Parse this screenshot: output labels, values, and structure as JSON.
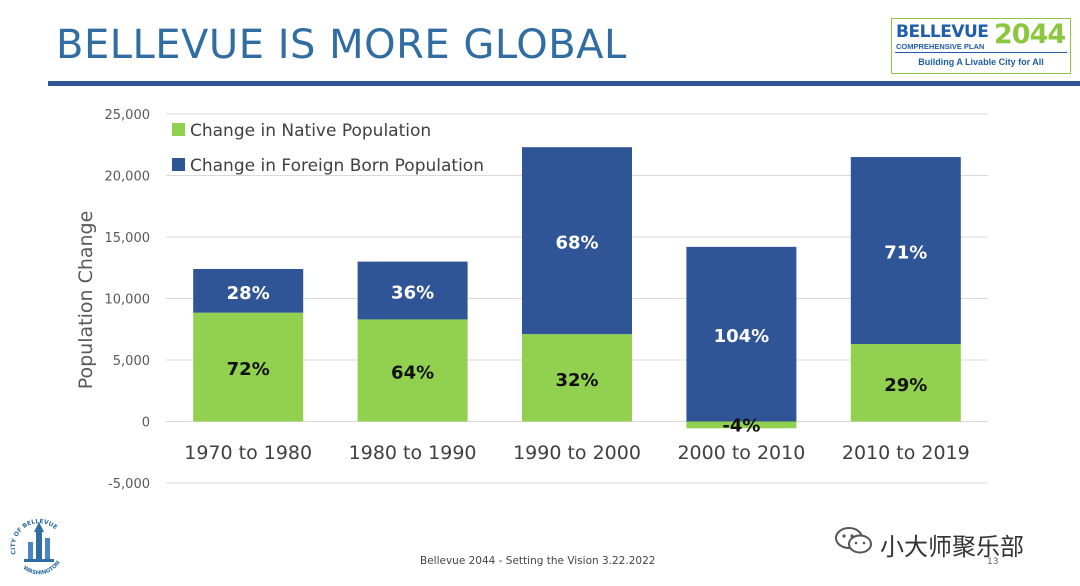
{
  "slide": {
    "title": "BELLEVUE IS MORE GLOBAL",
    "footer": "Bellevue 2044 - Setting the Vision 3.22.2022",
    "page_number": "13"
  },
  "logo": {
    "name": "BELLEVUE",
    "year": "2044",
    "plan": "COMPREHENSIVE PLAN",
    "tagline": "Building A Livable City for All"
  },
  "seal": {
    "text": "CITY OF BELLEVUE WASHINGTON"
  },
  "watermark": {
    "text": "小大师聚乐部",
    "icon": "wechat-icon"
  },
  "colors": {
    "title": "#2f6da3",
    "rule": "#2f5597",
    "native": "#92d050",
    "foreign": "#2f5597"
  },
  "chart_data": {
    "type": "bar",
    "stacked": true,
    "title": "",
    "xlabel": "",
    "ylabel": "Population Change",
    "categories": [
      "1970 to 1980",
      "1980 to 1990",
      "1990 to 2000",
      "2000 to 2010",
      "2010 to 2019"
    ],
    "series": [
      {
        "name": "Change in Native Population",
        "color": "#92d050",
        "values": [
          8850,
          8300,
          7100,
          -550,
          6300
        ],
        "labels": [
          "72%",
          "64%",
          "32%",
          "-4%",
          "29%"
        ]
      },
      {
        "name": "Change in Foreign Born Population",
        "color": "#2f5597",
        "values": [
          3550,
          4700,
          15200,
          14200,
          15200
        ],
        "labels": [
          "28%",
          "36%",
          "68%",
          "104%",
          "71%"
        ]
      }
    ],
    "ylim": [
      -5000,
      25000
    ],
    "yticks": [
      -5000,
      0,
      5000,
      10000,
      15000,
      20000,
      25000
    ],
    "ytick_labels": [
      "-5,000",
      "0",
      "5,000",
      "10,000",
      "15,000",
      "20,000",
      "25,000"
    ],
    "grid": true,
    "legend": "top-left"
  }
}
